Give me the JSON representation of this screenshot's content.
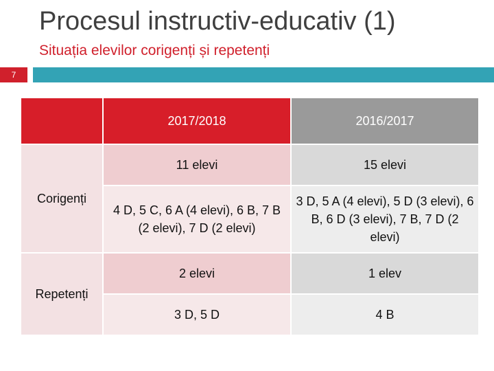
{
  "title": "Procesul instructiv-educativ (1)",
  "subtitle": "Situația elevilor corigenți și repetenți",
  "slide_number": "7",
  "colors": {
    "accent_red": "#d71e29",
    "header_grey": "#9a9a9a",
    "bar_teal": "#33a3b5"
  },
  "table": {
    "headers": [
      "",
      "2017/2018",
      "2016/2017"
    ],
    "row_labels": [
      "Corigenți",
      "Repetenți"
    ],
    "cells": {
      "corigenti_count": [
        "11 elevi",
        "15 elevi"
      ],
      "corigenti_classes": [
        "4 D, 5 C, 6 A (4 elevi), 6 B, 7 B (2 elevi), 7 D (2 elevi)",
        "3 D, 5 A (4 elevi), 5 D (3 elevi), 6 B, 6 D (3 elevi), 7 B, 7 D (2 elevi)"
      ],
      "repetenti_count": [
        "2 elevi",
        "1 elev"
      ],
      "repetenti_classes": [
        "3 D, 5 D",
        "4 B"
      ]
    }
  }
}
